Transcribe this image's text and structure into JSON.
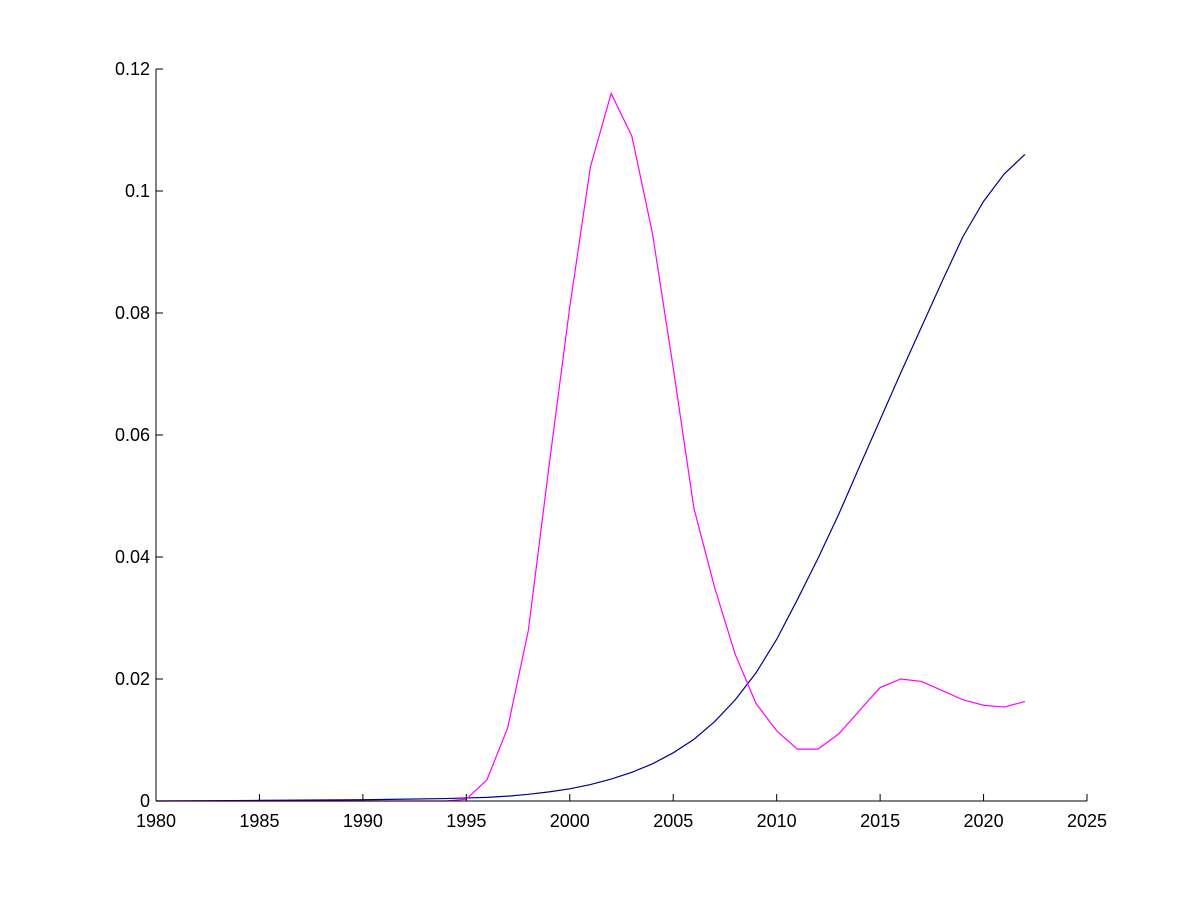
{
  "chart_data": {
    "type": "line",
    "title": "",
    "xlabel": "",
    "ylabel": "",
    "xlim": [
      1980,
      2025
    ],
    "ylim": [
      0,
      0.12
    ],
    "grid": false,
    "legend": "none",
    "x_ticks": [
      1980,
      1985,
      1990,
      1995,
      2000,
      2005,
      2010,
      2015,
      2020,
      2025
    ],
    "x_tick_labels": [
      "1980",
      "1985",
      "1990",
      "1995",
      "2000",
      "2005",
      "2010",
      "2015",
      "2020",
      "2025"
    ],
    "y_ticks": [
      0,
      0.02,
      0.04,
      0.06,
      0.08,
      0.1,
      0.12
    ],
    "y_tick_labels": [
      "0",
      "0.02",
      "0.04",
      "0.06",
      "0.08",
      "0.1",
      "0.12"
    ],
    "series": [
      {
        "color": "#00008f",
        "x": [
          1980,
          1985,
          1990,
          1994,
          1995,
          1996,
          1997,
          1998,
          1999,
          2000,
          2001,
          2002,
          2003,
          2004,
          2005,
          2006,
          2007,
          2008,
          2009,
          2010,
          2011,
          2012,
          2013,
          2014,
          2015,
          2016,
          2017,
          2018,
          2019,
          2020,
          2021,
          2022
        ],
        "values": [
          0.0,
          0.0001,
          0.0002,
          0.0004,
          0.0005,
          0.0006,
          0.0008,
          0.0011,
          0.0015,
          0.002,
          0.0027,
          0.0036,
          0.0047,
          0.0061,
          0.0079,
          0.0101,
          0.013,
          0.0166,
          0.021,
          0.0265,
          0.033,
          0.0398,
          0.047,
          0.0548,
          0.0625,
          0.0702,
          0.0777,
          0.0852,
          0.0925,
          0.0983,
          0.1028,
          0.106
        ]
      },
      {
        "color": "#ff00ff",
        "x": [
          1980,
          1994,
          1995,
          1996,
          1997,
          1998,
          1999,
          2000,
          2001,
          2002,
          2003,
          2004,
          2005,
          2006,
          2007,
          2008,
          2009,
          2010,
          2011,
          2012,
          2013,
          2014,
          2015,
          2016,
          2017,
          2018,
          2019,
          2020,
          2021,
          2022
        ],
        "values": [
          0.0,
          0.0,
          0.0003,
          0.0035,
          0.012,
          0.028,
          0.055,
          0.081,
          0.104,
          0.116,
          0.109,
          0.093,
          0.071,
          0.048,
          0.035,
          0.024,
          0.016,
          0.0115,
          0.0085,
          0.0085,
          0.011,
          0.0148,
          0.0186,
          0.02,
          0.0196,
          0.0181,
          0.0166,
          0.0157,
          0.0154,
          0.0163
        ]
      }
    ]
  }
}
